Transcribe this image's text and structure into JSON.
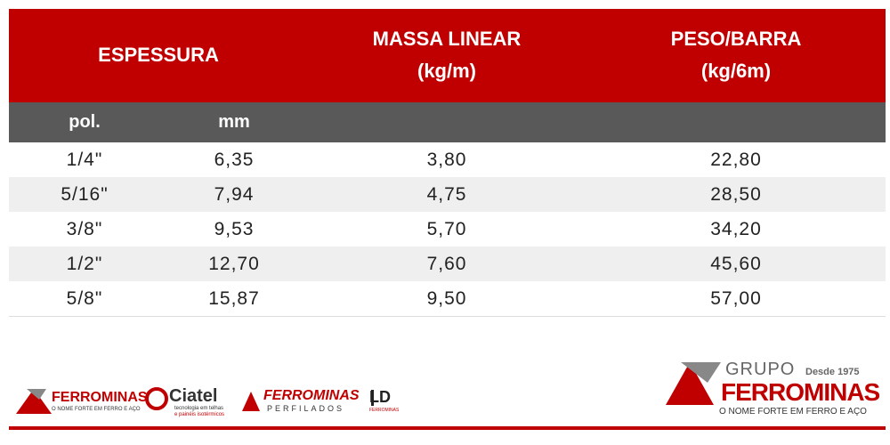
{
  "header": {
    "espessura": "ESPESSURA",
    "massa": [
      "MASSA LINEAR",
      "(kg/m)"
    ],
    "peso": [
      "PESO/BARRA",
      "(kg/6m)"
    ]
  },
  "subheader": [
    "pol.",
    "mm"
  ],
  "table": {
    "rows": [
      [
        "1/4\"",
        "6,35",
        "3,80",
        "22,80"
      ],
      [
        "5/16\"",
        "7,94",
        "4,75",
        "28,50"
      ],
      [
        "3/8\"",
        "9,53",
        "5,70",
        "34,20"
      ],
      [
        "1/2\"",
        "12,70",
        "7,60",
        "45,60"
      ],
      [
        "5/8\"",
        "15,87",
        "9,50",
        "57,00"
      ]
    ]
  },
  "logos": {
    "ferrominas": {
      "name": "FERROMINAS",
      "tagline": "O NOME FORTE EM FERRO E AÇO"
    },
    "ciatel": {
      "name": "Ciatel",
      "tagline": [
        "tecnologia em telhas",
        "e painéis isotérmicos"
      ]
    },
    "perfilados": {
      "name": "FERROMINAS",
      "tagline": "PERFILADOS"
    },
    "ld": {
      "name": "LD",
      "tagline": "FERROMINAS"
    },
    "grupo": {
      "group": "GRUPO",
      "since": "Desde 1975",
      "name": "FERROMINAS",
      "tagline": "O NOME FORTE EM FERRO E AÇO"
    }
  }
}
